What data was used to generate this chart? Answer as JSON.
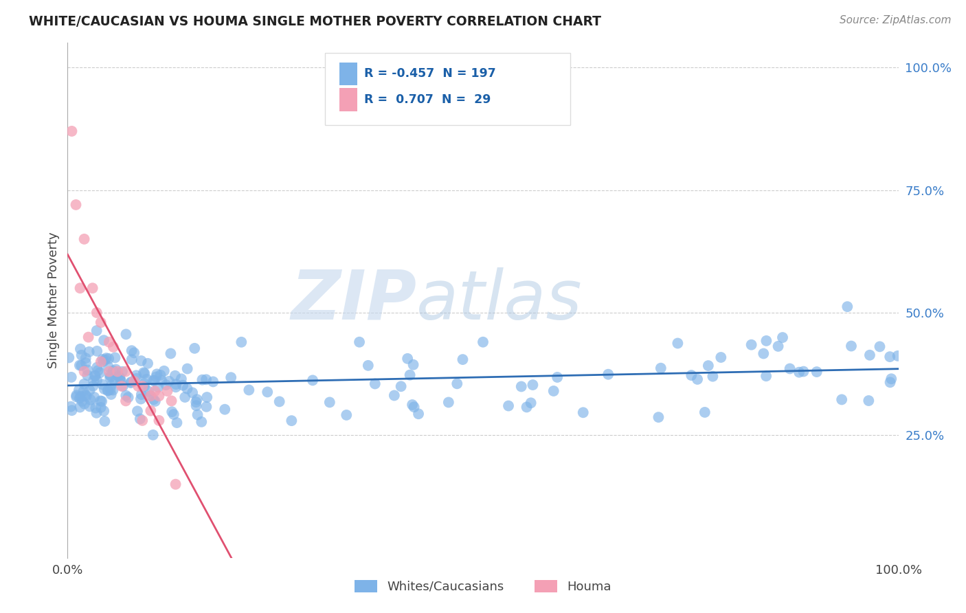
{
  "title": "WHITE/CAUCASIAN VS HOUMA SINGLE MOTHER POVERTY CORRELATION CHART",
  "source": "Source: ZipAtlas.com",
  "ylabel": "Single Mother Poverty",
  "legend_white_r": -0.457,
  "legend_white_n": 197,
  "legend_houma_r": 0.707,
  "legend_houma_n": 29,
  "white_color": "#7EB3E8",
  "houma_color": "#F4A0B5",
  "white_line_color": "#2E6DB4",
  "houma_line_color": "#E05070",
  "background_color": "#FFFFFF",
  "grid_color": "#CCCCCC",
  "watermark_zip_color": "#C8D8EC",
  "watermark_atlas_color": "#A8C0DC"
}
